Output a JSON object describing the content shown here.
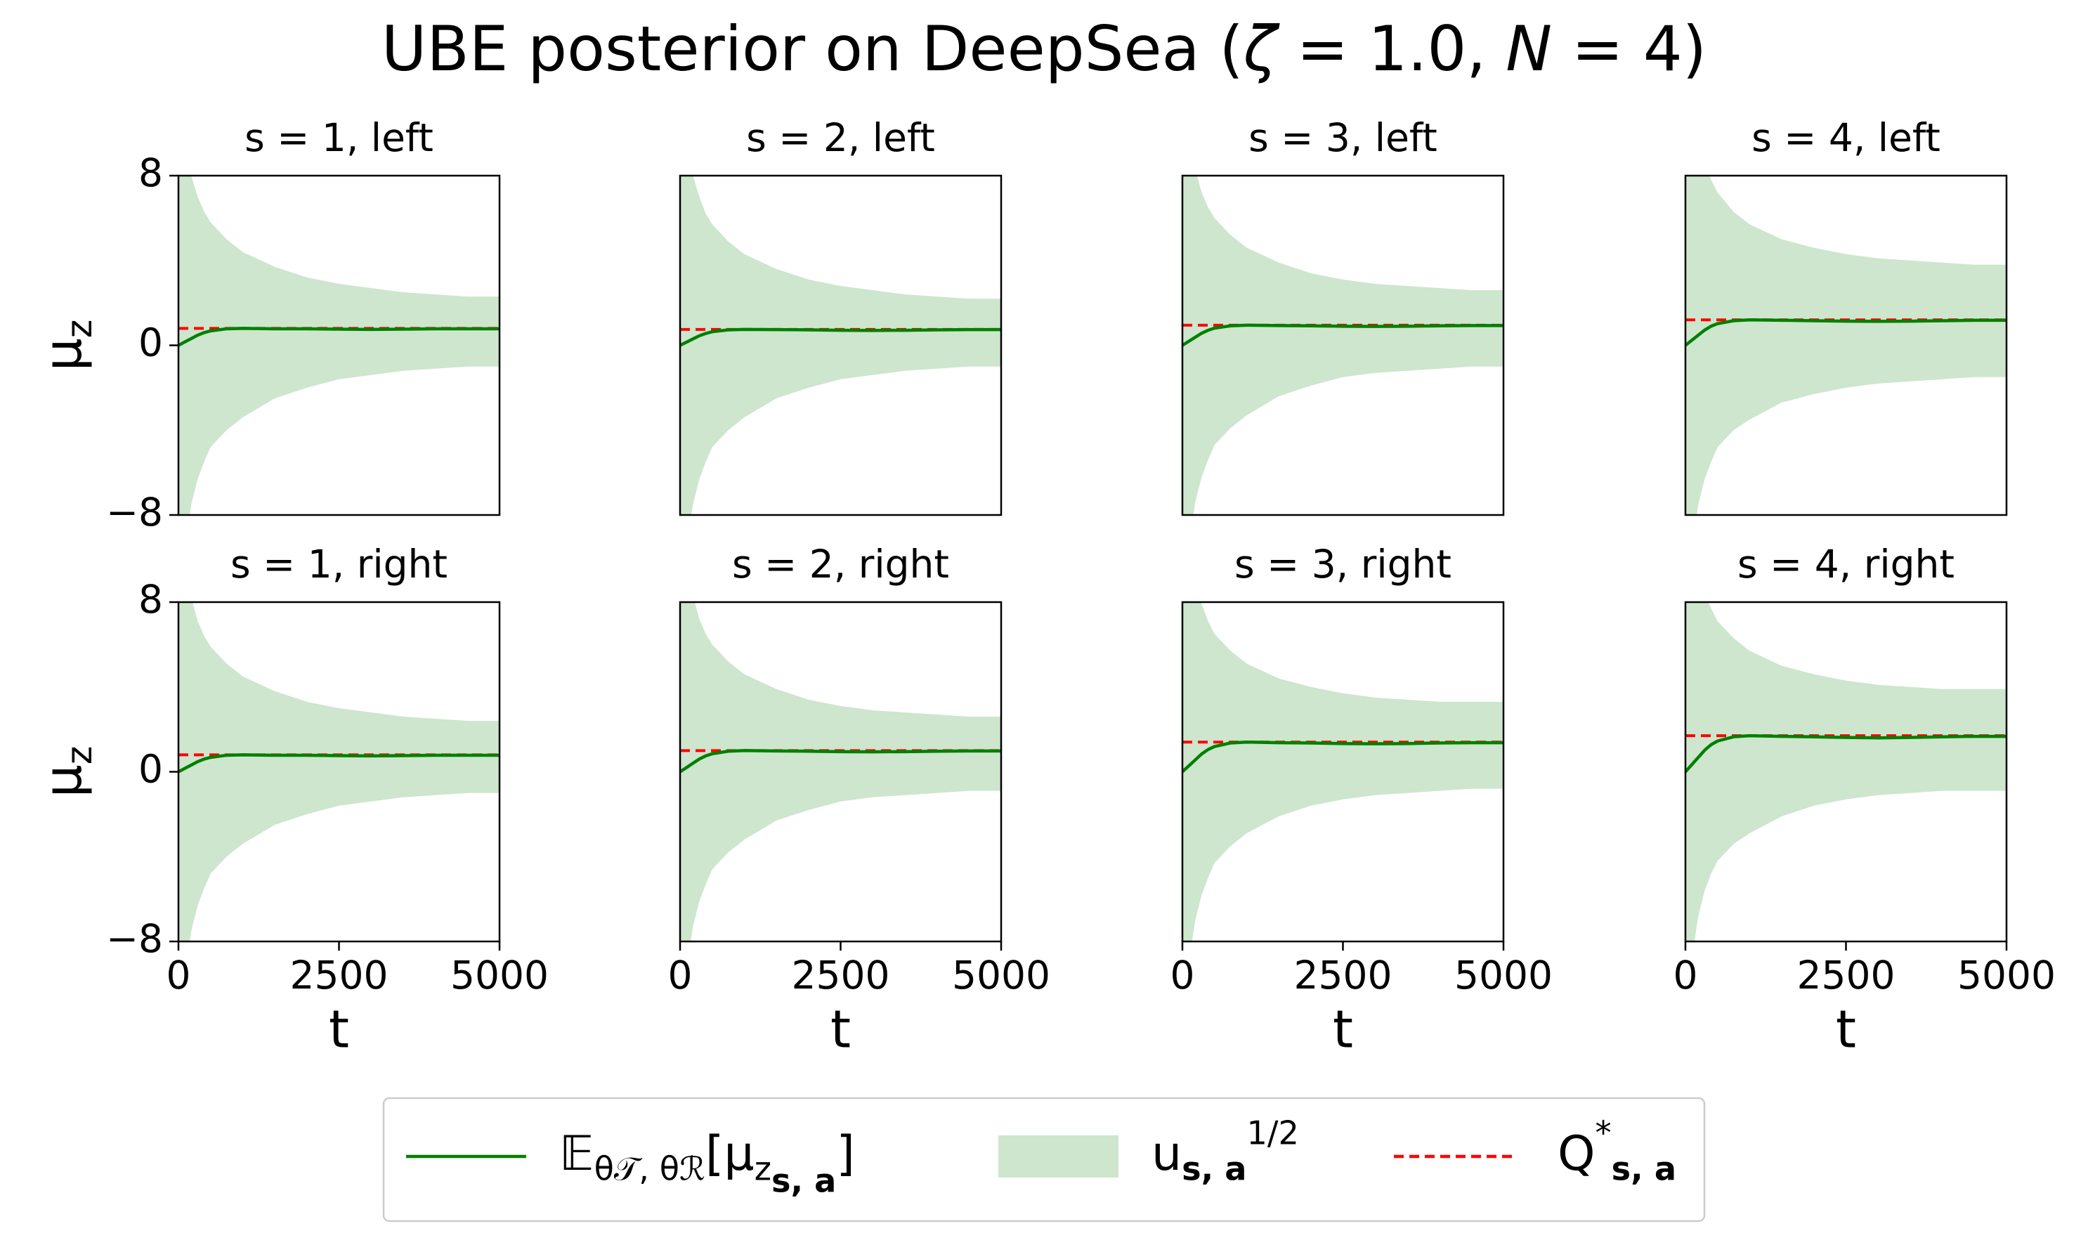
{
  "title": {
    "parts": [
      {
        "text": "UBE posterior on DeepSea ("
      },
      {
        "text": "ζ",
        "italic": true
      },
      {
        "text": " =  1.0, "
      },
      {
        "text": "N",
        "italic": true
      },
      {
        "text": " =  4)"
      }
    ]
  },
  "legend": [
    {
      "style": "line",
      "color": "#008000",
      "parts": [
        {
          "text": "𝔼"
        },
        {
          "text": "θ𝒯, θℛ",
          "pos": "sub"
        },
        {
          "text": "[μ"
        },
        {
          "text": "z",
          "pos": "sub"
        },
        {
          "text": "s, a",
          "pos": "sub2",
          "bold": true
        },
        {
          "text": "]"
        }
      ]
    },
    {
      "style": "band",
      "color": "#cde6cd",
      "parts": [
        {
          "text": "u"
        },
        {
          "text": "s, a",
          "pos": "sub",
          "bold": true
        },
        {
          "text": "1/2",
          "pos": "sup"
        }
      ]
    },
    {
      "style": "dashed",
      "color": "#ff0000",
      "parts": [
        {
          "text": "Q"
        },
        {
          "text": "*",
          "pos": "sup"
        },
        {
          "text": "s, a",
          "pos": "sub",
          "bold": true
        }
      ]
    }
  ],
  "chart_data": [
    {
      "type": "line",
      "title": "s = 1, left",
      "ylabel": {
        "parts": [
          {
            "text": "μ"
          },
          {
            "text": "z",
            "pos": "sub"
          }
        ]
      },
      "xlim": [
        0,
        5000
      ],
      "ylim": [
        -8,
        8
      ],
      "yticks": [
        {
          "value": -8,
          "label": "−8"
        },
        0,
        8
      ],
      "x": [
        0,
        100,
        200,
        300,
        400,
        500,
        750,
        1000,
        1500,
        2000,
        2500,
        3000,
        3500,
        4000,
        4500,
        5000
      ],
      "mean": [
        0,
        0.16,
        0.32,
        0.48,
        0.6,
        0.68,
        0.78,
        0.8,
        0.78,
        0.78,
        0.76,
        0.75,
        0.76,
        0.78,
        0.78,
        0.78
      ],
      "band_upper": [
        14,
        10,
        8,
        7,
        6.3,
        5.8,
        5,
        4.4,
        3.7,
        3.2,
        2.9,
        2.7,
        2.5,
        2.4,
        2.3,
        2.3
      ],
      "band_lower": [
        -14,
        -9.5,
        -7.5,
        -6.3,
        -5.5,
        -4.8,
        -4,
        -3.4,
        -2.5,
        -2,
        -1.6,
        -1.4,
        -1.2,
        -1.1,
        -1,
        -1
      ],
      "q_star": 0.8
    },
    {
      "type": "line",
      "title": "s = 2, left",
      "xlim": [
        0,
        5000
      ],
      "ylim": [
        -8,
        8
      ],
      "x": [
        0,
        100,
        200,
        300,
        400,
        500,
        750,
        1000,
        1500,
        2000,
        2500,
        3000,
        3500,
        4000,
        4500,
        5000
      ],
      "mean": [
        0,
        0.15,
        0.3,
        0.45,
        0.56,
        0.64,
        0.73,
        0.75,
        0.74,
        0.73,
        0.71,
        0.7,
        0.71,
        0.73,
        0.74,
        0.74
      ],
      "band_upper": [
        14,
        10,
        8,
        7,
        6.2,
        5.7,
        4.9,
        4.3,
        3.6,
        3.1,
        2.8,
        2.6,
        2.4,
        2.3,
        2.2,
        2.2
      ],
      "band_lower": [
        -14,
        -9.5,
        -7.5,
        -6.3,
        -5.5,
        -4.8,
        -4,
        -3.4,
        -2.5,
        -2,
        -1.6,
        -1.4,
        -1.2,
        -1.1,
        -1,
        -1
      ],
      "q_star": 0.75
    },
    {
      "type": "line",
      "title": "s = 3, left",
      "xlim": [
        0,
        5000
      ],
      "ylim": [
        -8,
        8
      ],
      "x": [
        0,
        100,
        200,
        300,
        400,
        500,
        750,
        1000,
        1500,
        2000,
        2500,
        3000,
        3500,
        4000,
        4500,
        5000
      ],
      "mean": [
        0,
        0.19,
        0.38,
        0.57,
        0.71,
        0.81,
        0.92,
        0.95,
        0.93,
        0.92,
        0.9,
        0.89,
        0.9,
        0.92,
        0.93,
        0.93
      ],
      "band_upper": [
        14,
        10.2,
        8.3,
        7.2,
        6.5,
        6,
        5.2,
        4.6,
        3.9,
        3.4,
        3.1,
        2.9,
        2.8,
        2.7,
        2.6,
        2.6
      ],
      "band_lower": [
        -14,
        -9.4,
        -7.4,
        -6.2,
        -5.4,
        -4.7,
        -3.9,
        -3.3,
        -2.4,
        -1.9,
        -1.5,
        -1.3,
        -1.2,
        -1.1,
        -1,
        -1
      ],
      "q_star": 0.95
    },
    {
      "type": "line",
      "title": "s = 4, left",
      "xlim": [
        0,
        5000
      ],
      "ylim": [
        -8,
        8
      ],
      "x": [
        0,
        100,
        200,
        300,
        400,
        500,
        750,
        1000,
        1500,
        2000,
        2500,
        3000,
        3500,
        4000,
        4500,
        5000
      ],
      "mean": [
        0,
        0.24,
        0.48,
        0.72,
        0.9,
        1.02,
        1.16,
        1.2,
        1.18,
        1.16,
        1.14,
        1.13,
        1.14,
        1.16,
        1.18,
        1.18
      ],
      "band_upper": [
        14,
        11,
        9.5,
        8.5,
        7.8,
        7.2,
        6.3,
        5.7,
        5,
        4.6,
        4.3,
        4.1,
        4,
        3.9,
        3.8,
        3.8
      ],
      "band_lower": [
        -14,
        -9.5,
        -7.5,
        -6.3,
        -5.5,
        -4.8,
        -4,
        -3.5,
        -2.7,
        -2.3,
        -2,
        -1.8,
        -1.7,
        -1.6,
        -1.5,
        -1.5
      ],
      "q_star": 1.2
    },
    {
      "type": "line",
      "title": "s = 1, right",
      "ylabel": {
        "parts": [
          {
            "text": "μ"
          },
          {
            "text": "z",
            "pos": "sub"
          }
        ]
      },
      "xlabel": "t",
      "xlim": [
        0,
        5000
      ],
      "ylim": [
        -8,
        8
      ],
      "yticks": [
        {
          "value": -8,
          "label": "−8"
        },
        0,
        8
      ],
      "xticks": [
        0,
        2500,
        5000
      ],
      "x": [
        0,
        100,
        200,
        300,
        400,
        500,
        750,
        1000,
        1500,
        2000,
        2500,
        3000,
        3500,
        4000,
        4500,
        5000
      ],
      "mean": [
        0,
        0.16,
        0.32,
        0.48,
        0.6,
        0.68,
        0.78,
        0.8,
        0.78,
        0.78,
        0.76,
        0.75,
        0.76,
        0.78,
        0.78,
        0.78
      ],
      "band_upper": [
        14,
        10,
        8.2,
        7.1,
        6.4,
        5.9,
        5.1,
        4.5,
        3.8,
        3.3,
        3,
        2.8,
        2.6,
        2.5,
        2.4,
        2.4
      ],
      "band_lower": [
        -14,
        -9.5,
        -7.5,
        -6.3,
        -5.5,
        -4.8,
        -4,
        -3.4,
        -2.5,
        -2,
        -1.6,
        -1.4,
        -1.2,
        -1.1,
        -1,
        -1
      ],
      "q_star": 0.8
    },
    {
      "type": "line",
      "title": "s = 2, right",
      "xlabel": "t",
      "xlim": [
        0,
        5000
      ],
      "ylim": [
        -8,
        8
      ],
      "xticks": [
        0,
        2500,
        5000
      ],
      "x": [
        0,
        100,
        200,
        300,
        400,
        500,
        750,
        1000,
        1500,
        2000,
        2500,
        3000,
        3500,
        4000,
        4500,
        5000
      ],
      "mean": [
        0,
        0.2,
        0.4,
        0.6,
        0.75,
        0.85,
        0.97,
        1,
        0.98,
        0.97,
        0.95,
        0.94,
        0.95,
        0.97,
        0.98,
        0.98
      ],
      "band_upper": [
        14,
        10.2,
        8.3,
        7.2,
        6.5,
        6,
        5.2,
        4.6,
        3.9,
        3.4,
        3.1,
        2.9,
        2.8,
        2.7,
        2.6,
        2.6
      ],
      "band_lower": [
        -14,
        -9.3,
        -7.3,
        -6.1,
        -5.3,
        -4.6,
        -3.8,
        -3.2,
        -2.3,
        -1.8,
        -1.4,
        -1.2,
        -1.1,
        -1,
        -0.9,
        -0.9
      ],
      "q_star": 1.0
    },
    {
      "type": "line",
      "title": "s = 3, right",
      "xlabel": "t",
      "xlim": [
        0,
        5000
      ],
      "ylim": [
        -8,
        8
      ],
      "xticks": [
        0,
        2500,
        5000
      ],
      "x": [
        0,
        100,
        200,
        300,
        400,
        500,
        750,
        1000,
        1500,
        2000,
        2500,
        3000,
        3500,
        4000,
        4500,
        5000
      ],
      "mean": [
        0,
        0.28,
        0.56,
        0.84,
        1.05,
        1.19,
        1.36,
        1.4,
        1.37,
        1.36,
        1.33,
        1.32,
        1.33,
        1.36,
        1.37,
        1.37
      ],
      "band_upper": [
        14,
        10.8,
        9,
        7.9,
        7.1,
        6.5,
        5.7,
        5.1,
        4.4,
        4,
        3.7,
        3.5,
        3.4,
        3.3,
        3.3,
        3.3
      ],
      "band_lower": [
        -14,
        -9,
        -7,
        -5.8,
        -5,
        -4.3,
        -3.5,
        -2.9,
        -2.1,
        -1.6,
        -1.3,
        -1.1,
        -1,
        -0.9,
        -0.8,
        -0.8
      ],
      "q_star": 1.4
    },
    {
      "type": "line",
      "title": "s = 4, right",
      "xlabel": "t",
      "xlim": [
        0,
        5000
      ],
      "ylim": [
        -8,
        8
      ],
      "xticks": [
        0,
        2500,
        5000
      ],
      "x": [
        0,
        100,
        200,
        300,
        400,
        500,
        750,
        1000,
        1500,
        2000,
        2500,
        3000,
        3500,
        4000,
        4500,
        5000
      ],
      "mean": [
        0,
        0.34,
        0.68,
        1.02,
        1.28,
        1.45,
        1.65,
        1.7,
        1.67,
        1.65,
        1.62,
        1.6,
        1.62,
        1.65,
        1.67,
        1.67
      ],
      "band_upper": [
        14,
        11.2,
        9.5,
        8.4,
        7.7,
        7.1,
        6.3,
        5.7,
        5,
        4.6,
        4.3,
        4.1,
        4,
        3.9,
        3.9,
        3.9
      ],
      "band_lower": [
        -14,
        -8.8,
        -6.8,
        -5.6,
        -4.8,
        -4.2,
        -3.4,
        -2.9,
        -2.1,
        -1.6,
        -1.3,
        -1.1,
        -1,
        -0.9,
        -0.9,
        -0.9
      ],
      "q_star": 1.7
    }
  ]
}
